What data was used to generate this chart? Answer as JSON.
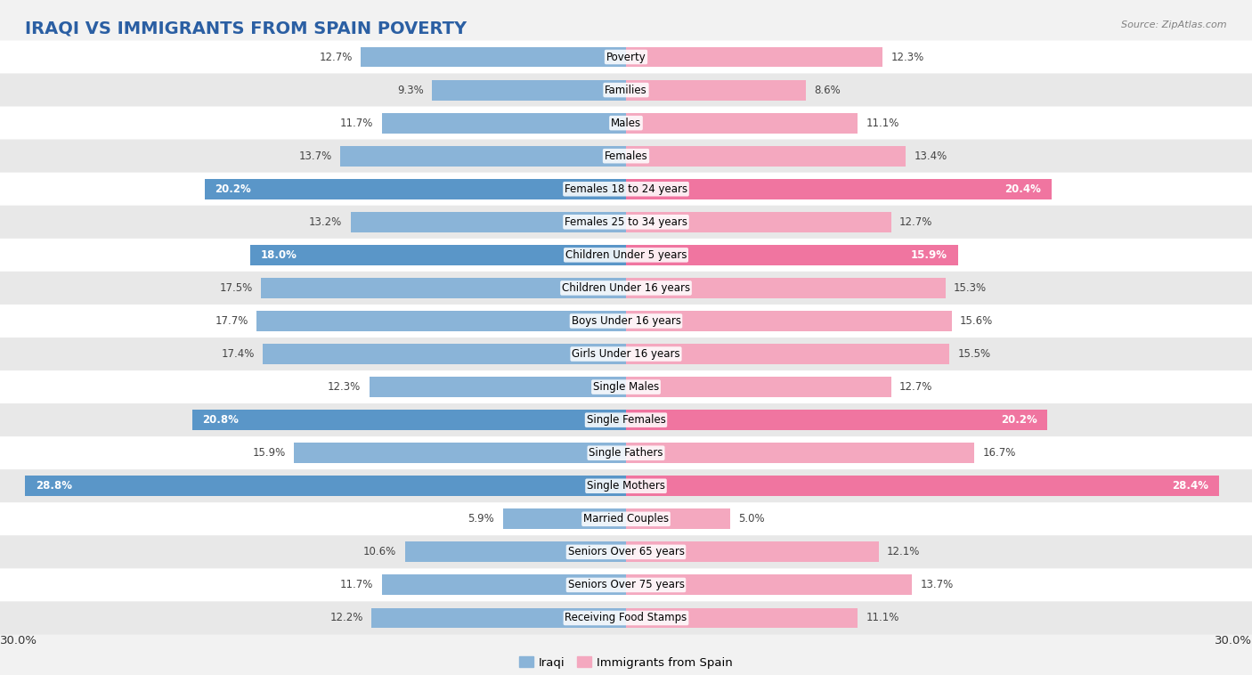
{
  "title": "IRAQI VS IMMIGRANTS FROM SPAIN POVERTY",
  "source": "Source: ZipAtlas.com",
  "categories": [
    "Poverty",
    "Families",
    "Males",
    "Females",
    "Females 18 to 24 years",
    "Females 25 to 34 years",
    "Children Under 5 years",
    "Children Under 16 years",
    "Boys Under 16 years",
    "Girls Under 16 years",
    "Single Males",
    "Single Females",
    "Single Fathers",
    "Single Mothers",
    "Married Couples",
    "Seniors Over 65 years",
    "Seniors Over 75 years",
    "Receiving Food Stamps"
  ],
  "iraqi_values": [
    12.7,
    9.3,
    11.7,
    13.7,
    20.2,
    13.2,
    18.0,
    17.5,
    17.7,
    17.4,
    12.3,
    20.8,
    15.9,
    28.8,
    5.9,
    10.6,
    11.7,
    12.2
  ],
  "spain_values": [
    12.3,
    8.6,
    11.1,
    13.4,
    20.4,
    12.7,
    15.9,
    15.3,
    15.6,
    15.5,
    12.7,
    20.2,
    16.7,
    28.4,
    5.0,
    12.1,
    13.7,
    11.1
  ],
  "iraqi_color": "#8ab4d8",
  "spain_color": "#f4a8bf",
  "iraqi_highlight_color": "#5a96c8",
  "spain_highlight_color": "#f075a0",
  "highlight_rows": [
    4,
    6,
    11,
    13
  ],
  "xlim": 30.0,
  "bar_height": 0.62,
  "background_color": "#f2f2f2",
  "row_bg_even": "#ffffff",
  "row_bg_odd": "#e8e8e8",
  "title_fontsize": 14,
  "label_fontsize": 8.5,
  "value_fontsize": 8.5,
  "legend_labels": [
    "Iraqi",
    "Immigrants from Spain"
  ]
}
